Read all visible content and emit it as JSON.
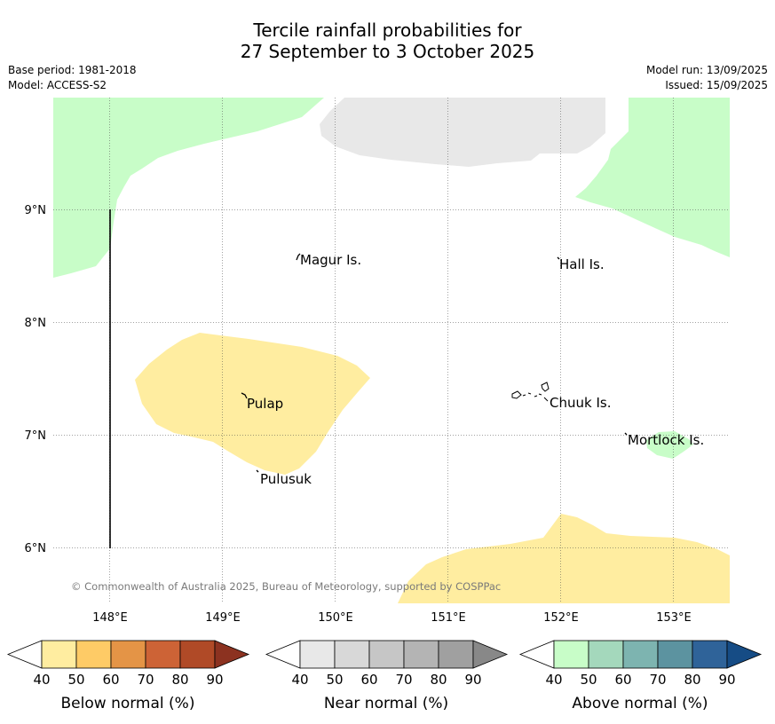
{
  "title": {
    "line1": "Tercile rainfall probabilities for",
    "line2": "27 September to 3 October 2025"
  },
  "meta": {
    "base_period": "Base period: 1981-2018",
    "model": "Model: ACCESS-S2",
    "model_run": "Model run: 13/09/2025",
    "issued": "Issued: 15/09/2025"
  },
  "map": {
    "lat_labels": [
      "9°N",
      "8°N",
      "7°N",
      "6°N"
    ],
    "lon_labels": [
      "148°E",
      "149°E",
      "150°E",
      "151°E",
      "152°E",
      "153°E"
    ],
    "places": {
      "magur": "Magur Is.",
      "hall": "Hall Is.",
      "pulap": "Pulap",
      "chuuk": "Chuuk Is.",
      "mortlock": "Mortlock Is.",
      "pulusuk": "Pulusuk"
    },
    "copyright": "© Commonwealth of Australia 2025, Bureau of Meteorology, supported by COSPPac"
  },
  "legend": {
    "ticks": [
      "40",
      "50",
      "60",
      "70",
      "80",
      "90"
    ],
    "below": {
      "label": "Below normal (%)",
      "colors": [
        "#ffffff",
        "#ffeda0",
        "#fecb66",
        "#e49446",
        "#cd6336",
        "#b04a27",
        "#8c3220"
      ]
    },
    "near": {
      "label": "Near normal (%)",
      "colors": [
        "#ffffff",
        "#e8e8e8",
        "#d8d8d8",
        "#c6c6c6",
        "#b4b4b4",
        "#a0a0a0",
        "#888888"
      ]
    },
    "above": {
      "label": "Above normal (%)",
      "colors": [
        "#ffffff",
        "#c8fdc8",
        "#a4d8bc",
        "#7db4b0",
        "#5c93a0",
        "#2f6399",
        "#164c85"
      ]
    }
  },
  "region_colors": {
    "above_40_50": "#c8fdc8",
    "near_40_50": "#e8e8e8",
    "below_40_50": "#ffeda0"
  }
}
